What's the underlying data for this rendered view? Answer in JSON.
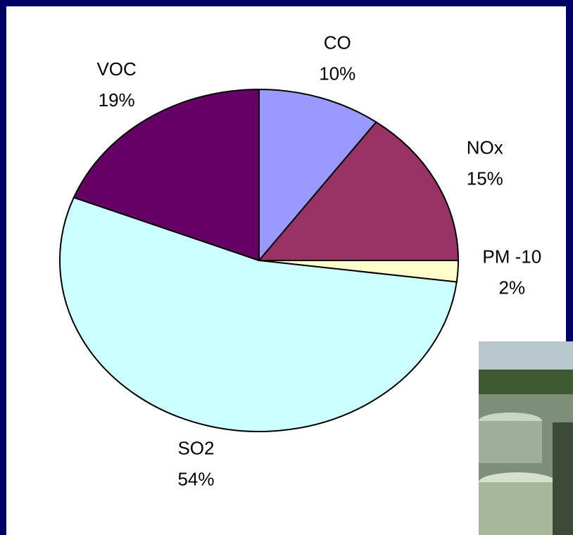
{
  "chart_data": {
    "type": "pie",
    "categories": [
      "CO",
      "NOx",
      "PM -10",
      "SO2",
      "VOC"
    ],
    "values": [
      10,
      15,
      2,
      54,
      19
    ],
    "value_labels": [
      "10%",
      "15%",
      "2%",
      "54%",
      "19%"
    ],
    "colors": [
      "#9999ff",
      "#993366",
      "#ffffcc",
      "#ccffff",
      "#660066"
    ]
  }
}
